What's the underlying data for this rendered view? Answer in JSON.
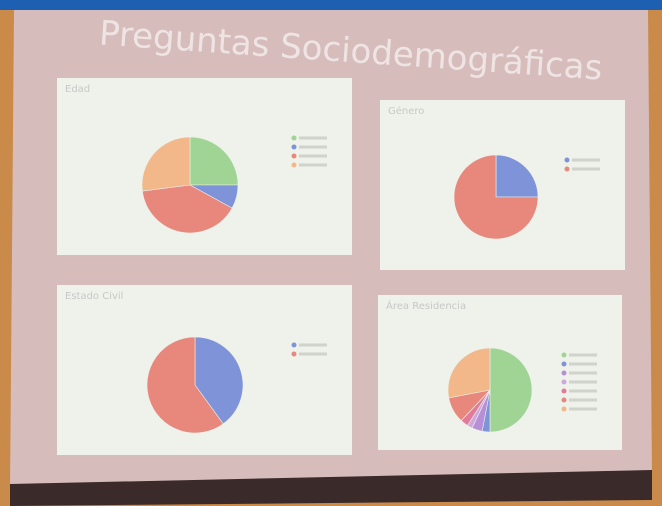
{
  "slide_title": "Preguntas Sociodemográficas",
  "chart_data": [
    {
      "type": "pie",
      "title": "Edad",
      "values": [
        25,
        8,
        40,
        27
      ],
      "colors": [
        "#9fd495",
        "#7f93d8",
        "#e8877c",
        "#f2b889"
      ]
    },
    {
      "type": "pie",
      "title": "Género",
      "values": [
        25,
        75
      ],
      "colors": [
        "#7f93d8",
        "#e8877c"
      ]
    },
    {
      "type": "pie",
      "title": "Estado Civil",
      "values": [
        40,
        60
      ],
      "colors": [
        "#7f93d8",
        "#e8877c"
      ]
    },
    {
      "type": "pie",
      "title": "Área Residencia",
      "values": [
        50,
        3,
        4,
        2,
        3,
        10,
        28
      ],
      "colors": [
        "#9fd495",
        "#7f93d8",
        "#b68fd6",
        "#cfa7e0",
        "#e07b9a",
        "#e8877c",
        "#f2b889"
      ]
    }
  ]
}
